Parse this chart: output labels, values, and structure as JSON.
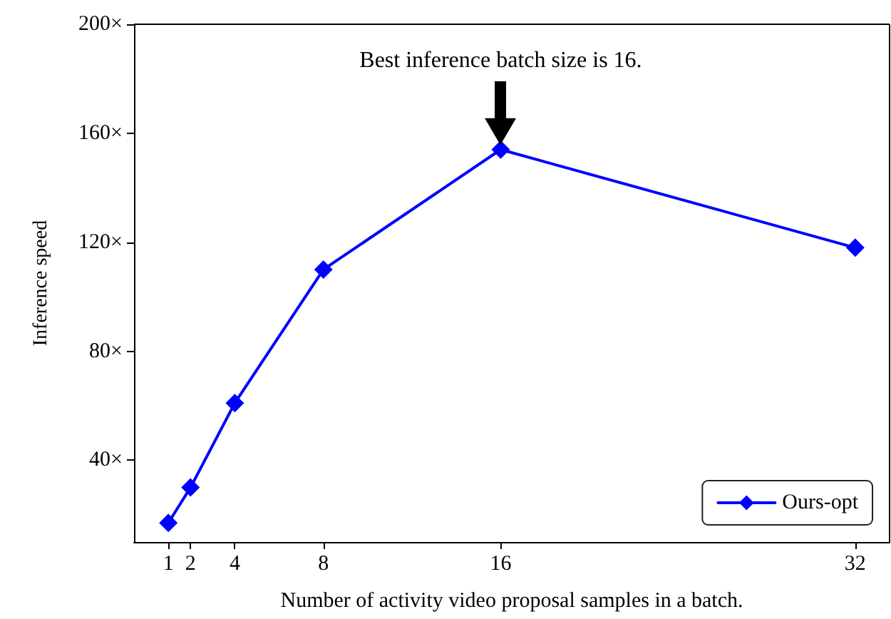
{
  "chart_data": {
    "type": "line",
    "xlabel": "Number of activity video proposal samples in a batch.",
    "ylabel": "Inference speed",
    "x": [
      1,
      2,
      4,
      8,
      16,
      32
    ],
    "series": [
      {
        "name": "Ours-opt",
        "color": "#0000ff",
        "values": [
          17,
          30,
          61,
          110,
          154,
          118
        ]
      }
    ],
    "xlim": [
      -0.55,
      33.55
    ],
    "xticks": [
      1,
      2,
      4,
      8,
      16,
      32
    ],
    "ylim": [
      10,
      200
    ],
    "yticks": [
      {
        "value": 40,
        "label": "40×"
      },
      {
        "value": 80,
        "label": "80×"
      },
      {
        "value": 120,
        "label": "120×"
      },
      {
        "value": 160,
        "label": "160×"
      },
      {
        "value": 200,
        "label": "200×"
      }
    ],
    "annotations": [
      "Best inference batch size is 16."
    ],
    "marker": "diamond",
    "line_style": "solid",
    "legend": "bottom right",
    "grid": false
  }
}
